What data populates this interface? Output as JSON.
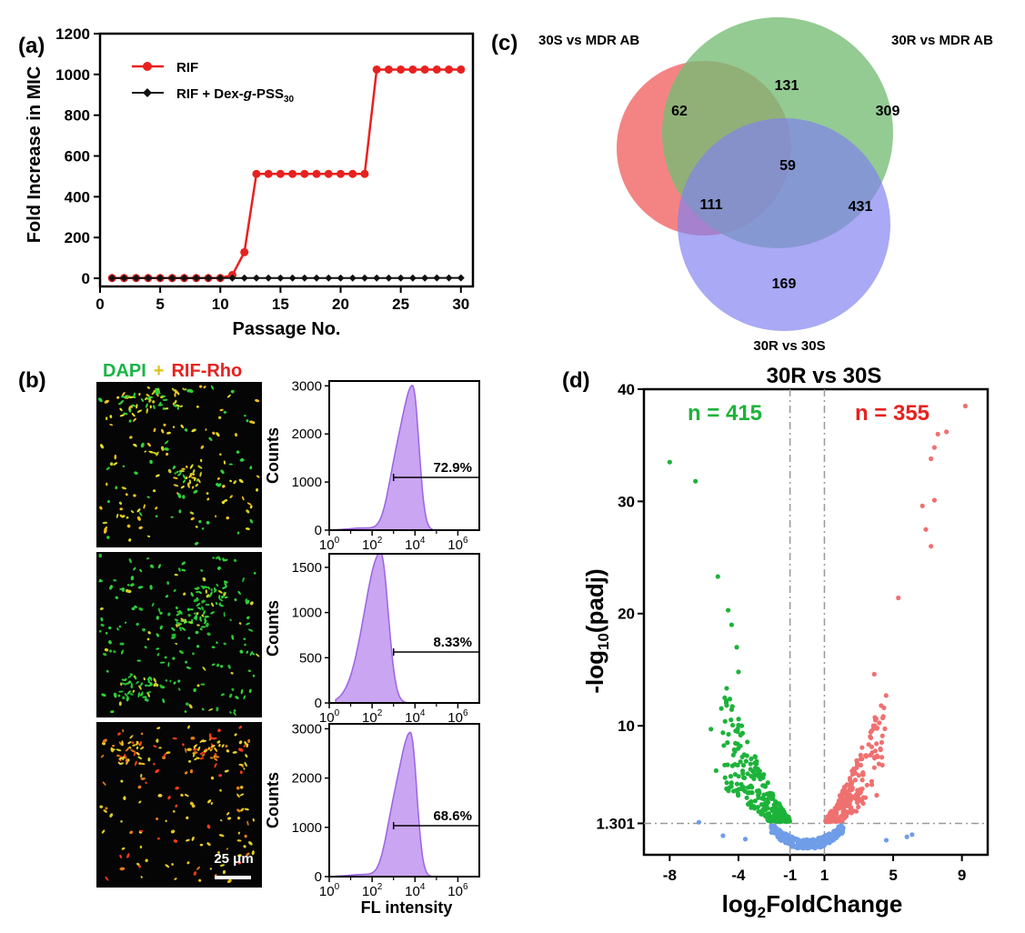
{
  "panel_labels": {
    "a": "(a)",
    "b": "(b)",
    "c": "(c)",
    "d": "(d)"
  },
  "chart_data": [
    {
      "panel": "a",
      "type": "line",
      "xlabel": "Passage No.",
      "ylabel": "Fold Increase in MIC",
      "xlim": [
        0,
        31
      ],
      "ylim": [
        -40,
        1200
      ],
      "xticks": [
        0,
        5,
        10,
        15,
        20,
        25,
        30
      ],
      "yticks": [
        0,
        200,
        400,
        600,
        800,
        1000,
        1200
      ],
      "legend_position": "top-left",
      "series": [
        {
          "name": "RIF",
          "color": "#e8211f",
          "marker": "circle",
          "x": [
            1,
            2,
            3,
            4,
            5,
            6,
            7,
            8,
            9,
            10,
            11,
            12,
            13,
            14,
            15,
            16,
            17,
            18,
            19,
            20,
            21,
            22,
            23,
            24,
            25,
            26,
            27,
            28,
            29,
            30
          ],
          "y": [
            1,
            1,
            1,
            1,
            1,
            1,
            1,
            1,
            1,
            1,
            16,
            128,
            512,
            512,
            512,
            512,
            512,
            512,
            512,
            512,
            512,
            512,
            1024,
            1024,
            1024,
            1024,
            1024,
            1024,
            1024,
            1024
          ]
        },
        {
          "name": "RIF + Dex-g-PSS30",
          "legend_parts": {
            "pre": "RIF + Dex-",
            "italic": "g",
            "mid": "-PSS",
            "sub": "30"
          },
          "color": "#111111",
          "marker": "diamond",
          "x": [
            1,
            2,
            3,
            4,
            5,
            6,
            7,
            8,
            9,
            10,
            11,
            12,
            13,
            14,
            15,
            16,
            17,
            18,
            19,
            20,
            21,
            22,
            23,
            24,
            25,
            26,
            27,
            28,
            29,
            30
          ],
          "y": [
            1,
            1,
            1,
            1,
            1,
            1,
            1,
            1,
            1,
            1,
            1,
            1,
            1,
            1,
            1,
            1,
            1,
            1,
            1,
            1,
            1,
            1,
            1,
            1,
            1,
            1,
            1,
            2,
            2,
            2
          ]
        }
      ]
    },
    {
      "panel": "b",
      "type": "area",
      "title_parts": {
        "a": "DAPI",
        "plus": "+",
        "b": "RIF-Rho"
      },
      "scale_bar": "25 μm",
      "xlabel": "FL intensity",
      "ylabel": "Counts",
      "x_scale": "log",
      "xticks": [
        "10^0",
        "10^2",
        "10^4",
        "10^6"
      ],
      "histograms": [
        {
          "gate_percent": "72.9%",
          "ylim": [
            0,
            3100
          ],
          "yticks": [
            0,
            1000,
            2000,
            3000
          ],
          "peak_log10": 3.9,
          "peak_count": 2980,
          "gate_from_log10": 3.0
        },
        {
          "gate_percent": "8.33%",
          "ylim": [
            0,
            1650
          ],
          "yticks": [
            0,
            500,
            1000,
            1500
          ],
          "peak_log10": 2.4,
          "peak_count": 1650,
          "gate_from_log10": 3.0
        },
        {
          "gate_percent": "68.6%",
          "ylim": [
            0,
            3100
          ],
          "yticks": [
            0,
            1000,
            2000,
            3000
          ],
          "peak_log10": 3.8,
          "peak_count": 2900,
          "gate_from_log10": 3.0
        }
      ]
    },
    {
      "panel": "c",
      "type": "venn",
      "sets": [
        {
          "name": "30S vs MDR AB",
          "color": "#f26f6f"
        },
        {
          "name": "30R vs MDR AB",
          "color": "#74bc74"
        },
        {
          "name": "30R vs 30S",
          "color": "#8080f0"
        }
      ],
      "regions": {
        "only_1": "62",
        "only_2": "309",
        "only_3": "169",
        "r12": "131",
        "r13": "111",
        "r23": "431",
        "r123": "59"
      }
    },
    {
      "panel": "d",
      "type": "scatter",
      "title": "30R vs 30S",
      "xlabel_parts": {
        "base": "log",
        "sub": "2",
        "rest": "FoldChange"
      },
      "ylabel_parts": {
        "pre": "-log",
        "sub": "10",
        "post": "(padj)"
      },
      "xlim": [
        -9.5,
        10.5
      ],
      "ylim": [
        -1.5,
        40
      ],
      "xticks": [
        -8,
        -4,
        -1,
        1,
        5,
        9
      ],
      "yticks": [
        "1.301",
        "10",
        "20",
        "30",
        "40"
      ],
      "ytick_values": [
        1.301,
        10,
        20,
        30,
        40
      ],
      "thresholds": {
        "fold_change": [
          -1,
          1
        ],
        "padj": 1.301
      },
      "annotations": {
        "down": "n = 415",
        "up": "n = 355"
      },
      "colors": {
        "down": "#1db33a",
        "up": "#f07070",
        "ns": "#6f9de8"
      },
      "highlight_down_points": [
        [
          -8.0,
          33.5
        ],
        [
          -6.5,
          31.8
        ],
        [
          -5.2,
          23.3
        ],
        [
          -4.6,
          20.3
        ],
        [
          -4.4,
          19.0
        ],
        [
          -4.1,
          17.0
        ],
        [
          -4.0,
          14.8
        ],
        [
          -4.8,
          12.5
        ],
        [
          -5.6,
          9.7
        ],
        [
          -5.3,
          6.0
        ]
      ],
      "highlight_up_points": [
        [
          9.2,
          38.5
        ],
        [
          8.1,
          36.2
        ],
        [
          7.6,
          36.0
        ],
        [
          7.4,
          34.8
        ],
        [
          7.2,
          33.8
        ],
        [
          7.4,
          30.1
        ],
        [
          6.7,
          29.6
        ],
        [
          6.9,
          27.5
        ],
        [
          7.2,
          26.0
        ],
        [
          5.3,
          21.4
        ],
        [
          3.9,
          14.6
        ],
        [
          4.3,
          11.8
        ]
      ],
      "ns_outliers": [
        [
          -6.3,
          1.4
        ],
        [
          -4.9,
          0.2
        ],
        [
          -3.6,
          -0.1
        ],
        [
          4.6,
          -0.2
        ],
        [
          5.8,
          0.1
        ],
        [
          6.1,
          0.3
        ]
      ]
    }
  ]
}
